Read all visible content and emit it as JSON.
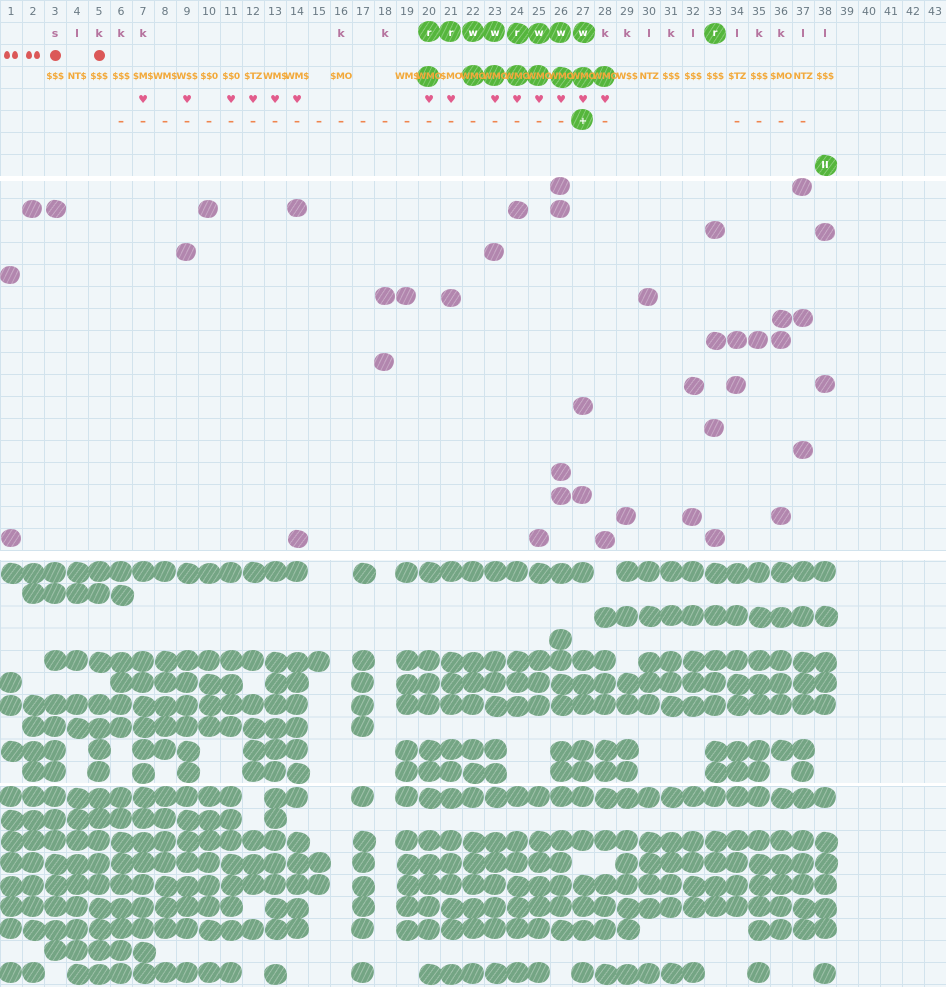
{
  "board": {
    "columns": [
      1,
      2,
      3,
      4,
      5,
      6,
      7,
      8,
      9,
      10,
      11,
      12,
      13,
      14,
      15,
      16,
      17,
      18,
      19,
      20,
      21,
      22,
      23,
      24,
      25,
      26,
      27,
      28,
      29,
      30,
      31,
      32,
      33,
      34,
      35,
      36,
      37,
      38,
      39,
      40,
      41,
      42,
      43
    ],
    "cell_size": 22,
    "colors": {
      "background": "#f0f6f9",
      "gridline": "#d2e3ed",
      "header_text": "#6a7a84",
      "letter_text": "#b5739e",
      "money_text": "#f2a93b",
      "heart": "#e25c8c",
      "dash": "#ef854e",
      "red_stamp": "#db5858",
      "bright_green_stamp": "#55b63c",
      "sage_green_stamp": "#74a584",
      "purple_stamp": "#b286ae"
    },
    "top_section": {
      "letters": [
        [
          3,
          "s"
        ],
        [
          4,
          "l"
        ],
        [
          5,
          "k"
        ],
        [
          6,
          "k"
        ],
        [
          7,
          "k"
        ],
        [
          16,
          "k"
        ],
        [
          18,
          "k"
        ],
        [
          28,
          "k"
        ],
        [
          29,
          "k"
        ],
        [
          30,
          "l"
        ],
        [
          31,
          "k"
        ],
        [
          32,
          "l"
        ],
        [
          34,
          "l"
        ],
        [
          35,
          "k"
        ],
        [
          36,
          "k"
        ],
        [
          37,
          "l"
        ],
        [
          38,
          "l"
        ]
      ],
      "letter_stamps": [
        [
          20,
          "r"
        ],
        [
          21,
          "r"
        ],
        [
          22,
          "w"
        ],
        [
          23,
          "w"
        ],
        [
          24,
          "r"
        ],
        [
          25,
          "w"
        ],
        [
          26,
          "w"
        ],
        [
          27,
          "w"
        ],
        [
          33,
          "r"
        ]
      ],
      "red_pair_cols": [
        1,
        2
      ],
      "red_dot_cols": [
        3,
        5
      ],
      "money": [
        [
          3,
          "$$$"
        ],
        [
          4,
          "NT$"
        ],
        [
          5,
          "$$$"
        ],
        [
          6,
          "$$$"
        ],
        [
          7,
          "$M$"
        ],
        [
          8,
          "WM$"
        ],
        [
          9,
          "W$$"
        ],
        [
          10,
          "$$0"
        ],
        [
          11,
          "$$0"
        ],
        [
          12,
          "$TZ"
        ],
        [
          13,
          "WM$"
        ],
        [
          14,
          "WM$"
        ],
        [
          16,
          "$MO"
        ],
        [
          19,
          "WM$"
        ],
        [
          21,
          "$MO"
        ],
        [
          29,
          "W$$"
        ],
        [
          30,
          "NTZ"
        ],
        [
          31,
          "$$$"
        ],
        [
          32,
          "$$$"
        ],
        [
          33,
          "$$$"
        ],
        [
          34,
          "$TZ"
        ],
        [
          35,
          "$$$"
        ],
        [
          36,
          "$MO"
        ],
        [
          37,
          "NTZ"
        ],
        [
          38,
          "$$$"
        ]
      ],
      "money_stamps": [
        [
          20,
          "WMO"
        ],
        [
          22,
          "WMO"
        ],
        [
          23,
          "WMO"
        ],
        [
          24,
          "WMO"
        ],
        [
          25,
          "WMO"
        ],
        [
          26,
          "WMO"
        ],
        [
          27,
          "WMO"
        ],
        [
          28,
          "WMO"
        ]
      ],
      "heart_cols": [
        7,
        9,
        11,
        12,
        13,
        14,
        20,
        21,
        23,
        24,
        25,
        26,
        27,
        28
      ],
      "dash_cols": "6-26,28,34-37",
      "plus_stamp": {
        "col": 27,
        "label": "+"
      },
      "pause_stamp": {
        "col": 38,
        "label": "II"
      }
    },
    "scatter_section": {
      "rows": [
        "26,37",
        "2,3,10,14,24,26",
        "33,38",
        "9,23",
        "1",
        "18,19,21,30",
        "36,37",
        "33-36",
        "18",
        "32,34,38",
        "27",
        "33",
        "37",
        "26",
        "26,27",
        "29,32,36",
        "1,14,25,28,33"
      ]
    },
    "green_band_1": {
      "rows": [
        "1-14,17,19-27,29-38",
        "2-6",
        "28-38",
        "26",
        "3-15,17,19-28,30-38",
        "1,6-11,13-14,17,19-38",
        "1-14,17,19-38",
        "2-14,17",
        "1-3,5,7-9,12-14,19-23,26-29,33-37",
        "2-3,5,7,9,12-14,19-23,26-29,33-35,37"
      ]
    },
    "green_band_2": {
      "rows": [
        "1-11,13-14,17,19-38",
        "1-11,13",
        "1-14,17,19-38",
        "1-15,17,19-26,29-38",
        "1-15,17,19-38",
        "1-11,13-14,17,19-38",
        "1-14,17,19-29,35-38",
        "3-7",
        "1-2,4-11,13,17,20-25,27-32,35,38"
      ]
    }
  }
}
